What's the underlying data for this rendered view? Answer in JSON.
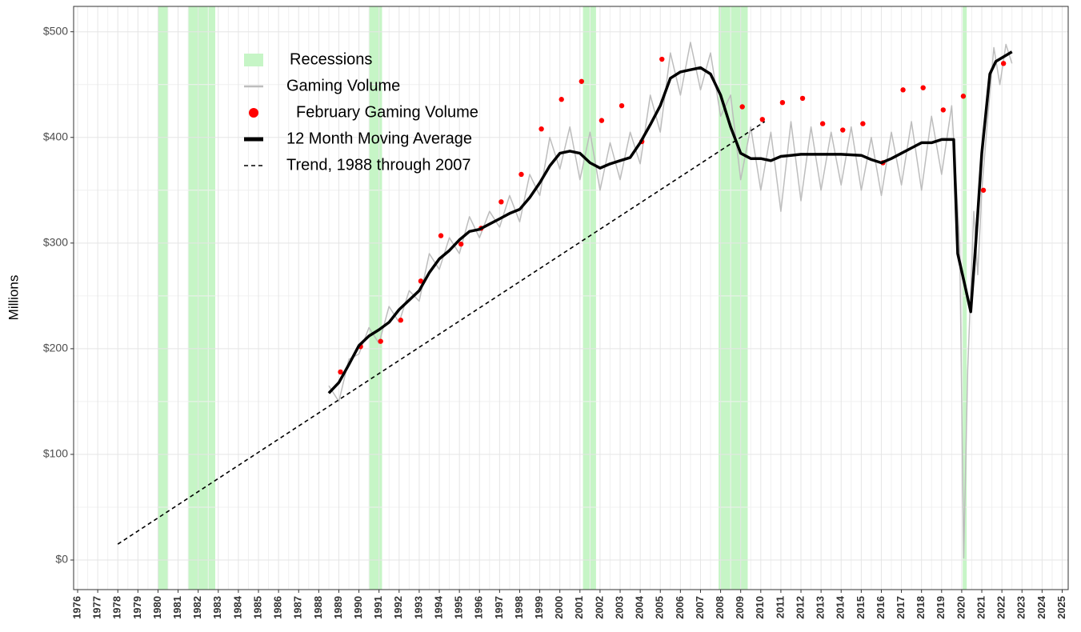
{
  "chart_data": {
    "type": "line",
    "y_label": "Millions",
    "xlim": [
      1975.8,
      2025.3
    ],
    "ylim": [
      -28,
      524
    ],
    "xticks": [
      1976,
      1977,
      1978,
      1979,
      1980,
      1981,
      1982,
      1983,
      1984,
      1985,
      1986,
      1987,
      1988,
      1989,
      1990,
      1991,
      1992,
      1993,
      1994,
      1995,
      1996,
      1997,
      1998,
      1999,
      2000,
      2001,
      2002,
      2003,
      2004,
      2005,
      2006,
      2007,
      2008,
      2009,
      2010,
      2011,
      2012,
      2013,
      2014,
      2015,
      2016,
      2017,
      2018,
      2019,
      2020,
      2021,
      2022,
      2023,
      2024,
      2025
    ],
    "yticks": [
      {
        "value": 0,
        "label": "$0"
      },
      {
        "value": 100,
        "label": "$100"
      },
      {
        "value": 200,
        "label": "$200"
      },
      {
        "value": 300,
        "label": "$300"
      },
      {
        "value": 400,
        "label": "$400"
      },
      {
        "value": 500,
        "label": "$500"
      }
    ],
    "grid": true,
    "recessions": {
      "name": "Recessions",
      "color": "#c6f5c6",
      "spans": [
        [
          1980.0,
          1980.5
        ],
        [
          1981.5,
          1982.85
        ],
        [
          1990.5,
          1991.15
        ],
        [
          2001.15,
          2001.8
        ],
        [
          2007.9,
          2009.35
        ],
        [
          2020.05,
          2020.25
        ]
      ]
    },
    "series": [
      {
        "name": "Gaming Volume",
        "color": "#bdbdbd",
        "style": "line",
        "x": [
          1988.5,
          1989,
          1989.5,
          1990,
          1990.5,
          1991,
          1991.5,
          1992,
          1992.5,
          1993,
          1993.5,
          1994,
          1994.5,
          1995,
          1995.5,
          1996,
          1996.5,
          1997,
          1997.5,
          1998,
          1998.5,
          1999,
          1999.5,
          2000,
          2000.5,
          2001,
          2001.5,
          2002,
          2002.5,
          2003,
          2003.5,
          2004,
          2004.5,
          2005,
          2005.5,
          2006,
          2006.5,
          2007,
          2007.5,
          2008,
          2008.5,
          2009,
          2009.5,
          2010,
          2010.5,
          2011,
          2011.5,
          2012,
          2012.5,
          2013,
          2013.5,
          2014,
          2014.5,
          2015,
          2015.5,
          2016,
          2016.5,
          2017,
          2017.5,
          2018,
          2018.5,
          2019,
          2019.5,
          2019.9,
          2020.1,
          2020.3,
          2020.6,
          2020.8,
          2021,
          2021.3,
          2021.6,
          2021.9,
          2022.2,
          2022.5
        ],
        "values": [
          165,
          150,
          190,
          195,
          220,
          205,
          240,
          225,
          255,
          245,
          290,
          275,
          305,
          290,
          325,
          305,
          330,
          315,
          345,
          320,
          365,
          345,
          400,
          370,
          410,
          360,
          405,
          350,
          395,
          360,
          405,
          375,
          440,
          405,
          480,
          440,
          490,
          445,
          480,
          420,
          440,
          360,
          410,
          350,
          405,
          330,
          415,
          340,
          410,
          350,
          405,
          355,
          410,
          350,
          400,
          345,
          405,
          355,
          415,
          350,
          420,
          365,
          430,
          300,
          2,
          180,
          330,
          270,
          350,
          420,
          485,
          450,
          488,
          470
        ]
      },
      {
        "name": "February Gaming Volume",
        "color": "#ff0000",
        "style": "points",
        "x": [
          1989.08,
          1990.08,
          1991.08,
          1992.08,
          1993.08,
          1994.08,
          1995.08,
          1996.08,
          1997.08,
          1998.08,
          1999.08,
          2000.08,
          2001.08,
          2002.08,
          2003.08,
          2004.08,
          2005.08,
          2009.08,
          2010.08,
          2011.08,
          2012.08,
          2013.08,
          2014.08,
          2015.08,
          2016.08,
          2017.08,
          2018.08,
          2019.08,
          2020.08,
          2021.08,
          2022.08
        ],
        "values": [
          178,
          202,
          207,
          227,
          264,
          307,
          299,
          314,
          339,
          365,
          408,
          436,
          453,
          416,
          430,
          396,
          474,
          429,
          417,
          433,
          437,
          413,
          407,
          413,
          376,
          445,
          447,
          426,
          439,
          350,
          470
        ]
      },
      {
        "name": "12 Month Moving Average",
        "color": "#000000",
        "style": "line",
        "x": [
          1988.5,
          1989,
          1989.5,
          1990,
          1990.5,
          1991,
          1991.5,
          1992,
          1992.5,
          1993,
          1993.5,
          1994,
          1994.5,
          1995,
          1995.5,
          1996,
          1996.5,
          1997,
          1997.5,
          1998,
          1998.5,
          1999,
          1999.5,
          2000,
          2000.5,
          2001,
          2001.5,
          2002,
          2002.5,
          2003,
          2003.5,
          2004,
          2004.5,
          2005,
          2005.5,
          2006,
          2006.5,
          2007,
          2007.5,
          2008,
          2008.5,
          2009,
          2009.5,
          2010,
          2010.5,
          2011,
          2011.5,
          2012,
          2013,
          2014,
          2015,
          2015.5,
          2016,
          2016.5,
          2017,
          2017.5,
          2018,
          2018.5,
          2019,
          2019.6,
          2019.8,
          2020.1,
          2020.45,
          2020.7,
          2021,
          2021.4,
          2021.7,
          2022.5
        ],
        "values": [
          158,
          168,
          185,
          203,
          212,
          218,
          225,
          237,
          246,
          255,
          272,
          285,
          293,
          303,
          311,
          313,
          318,
          323,
          328,
          332,
          343,
          357,
          373,
          385,
          387,
          385,
          376,
          371,
          375,
          378,
          381,
          395,
          412,
          430,
          456,
          462,
          464,
          466,
          460,
          440,
          410,
          385,
          380,
          380,
          378,
          382,
          383,
          384,
          384,
          384,
          383,
          379,
          376,
          380,
          385,
          390,
          395,
          395,
          398,
          398,
          290,
          265,
          235,
          300,
          385,
          460,
          472,
          481
        ]
      },
      {
        "name": "Trend, 1988 through 2007",
        "color": "#000000",
        "style": "dashed",
        "x": [
          1978.0,
          2010.2
        ],
        "values": [
          15,
          415
        ]
      }
    ]
  }
}
